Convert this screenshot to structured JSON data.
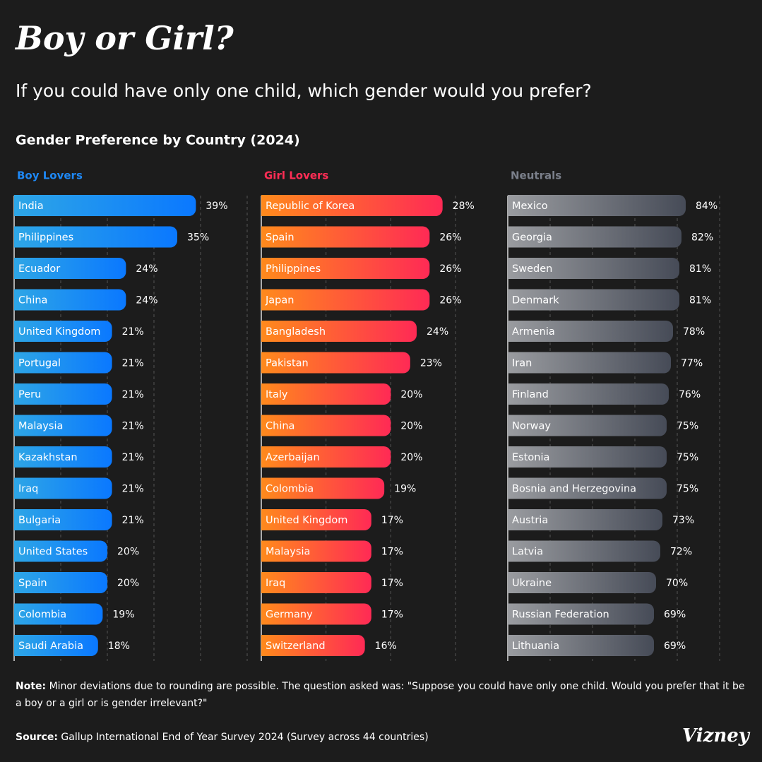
{
  "title": "Boy or Girl?",
  "subtitle": "If you could have only one child, which gender would you prefer?",
  "heading": "Gender Preference by Country (2024)",
  "chart_data": [
    {
      "type": "bar",
      "orientation": "horizontal",
      "title": "Boy Lovers",
      "title_color": "#1e88f5",
      "categories": [
        "India",
        "Philippines",
        "Ecuador",
        "China",
        "United Kingdom",
        "Portugal",
        "Peru",
        "Malaysia",
        "Kazakhstan",
        "Iraq",
        "Bulgaria",
        "United States",
        "Spain",
        "Colombia",
        "Saudi Arabia"
      ],
      "values": [
        39,
        35,
        24,
        24,
        21,
        21,
        21,
        21,
        21,
        21,
        21,
        20,
        20,
        19,
        18
      ],
      "value_labels": [
        "39%",
        "35%",
        "24%",
        "24%",
        "21%",
        "21%",
        "21%",
        "21%",
        "21%",
        "21%",
        "21%",
        "20%",
        "20%",
        "19%",
        "18%"
      ],
      "gradient": [
        "#2ea6e6",
        "#0a78ff"
      ],
      "xlim": [
        0,
        50
      ],
      "xticks": [
        0,
        10,
        20,
        30,
        40,
        50
      ],
      "grid": true
    },
    {
      "type": "bar",
      "orientation": "horizontal",
      "title": "Girl Lovers",
      "title_color": "#ff2d55",
      "categories": [
        "Republic of Korea",
        "Spain",
        "Philippines",
        "Japan",
        "Bangladesh",
        "Pakistan",
        "Italy",
        "China",
        "Azerbaijan",
        "Colombia",
        "United Kingdom",
        "Malaysia",
        "Iraq",
        "Germany",
        "Switzerland"
      ],
      "values": [
        28,
        26,
        26,
        26,
        24,
        23,
        20,
        20,
        20,
        19,
        17,
        17,
        17,
        17,
        16
      ],
      "value_labels": [
        "28%",
        "26%",
        "26%",
        "26%",
        "24%",
        "23%",
        "20%",
        "20%",
        "20%",
        "19%",
        "17%",
        "17%",
        "17%",
        "17%",
        "16%"
      ],
      "gradient": [
        "#ff8a1c",
        "#ff2a55"
      ],
      "xlim": [
        0,
        36
      ],
      "xticks": [
        0,
        10,
        20,
        30
      ],
      "grid": true
    },
    {
      "type": "bar",
      "orientation": "horizontal",
      "title": "Neutrals",
      "title_color": "#7a7f8a",
      "categories": [
        "Mexico",
        "Georgia",
        "Sweden",
        "Denmark",
        "Armenia",
        "Iran",
        "Finland",
        "Norway",
        "Estonia",
        "Bosnia and Herzegovina",
        "Austria",
        "Latvia",
        "Ukraine",
        "Russian Federation",
        "Lithuania"
      ],
      "values": [
        84,
        82,
        81,
        81,
        78,
        77,
        76,
        75,
        75,
        75,
        73,
        72,
        70,
        69,
        69
      ],
      "value_labels": [
        "84%",
        "82%",
        "81%",
        "81%",
        "78%",
        "77%",
        "76%",
        "75%",
        "75%",
        "75%",
        "73%",
        "72%",
        "70%",
        "69%",
        "69%"
      ],
      "gradient": [
        "#9a9ca0",
        "#464b57"
      ],
      "xlim": [
        0,
        110
      ],
      "xticks": [
        0,
        20,
        40,
        60,
        80,
        100
      ],
      "grid": true
    }
  ],
  "note": {
    "label": "Note:",
    "text": "Minor deviations due to rounding are possible. The question asked was: \"Suppose you could have only one child. Would you prefer that it be a boy or a girl or is gender irrelevant?\""
  },
  "source": {
    "label": "Source:",
    "text": "Gallup International End of Year Survey 2024 (Survey across 44 countries)"
  },
  "brand": "Vizney"
}
